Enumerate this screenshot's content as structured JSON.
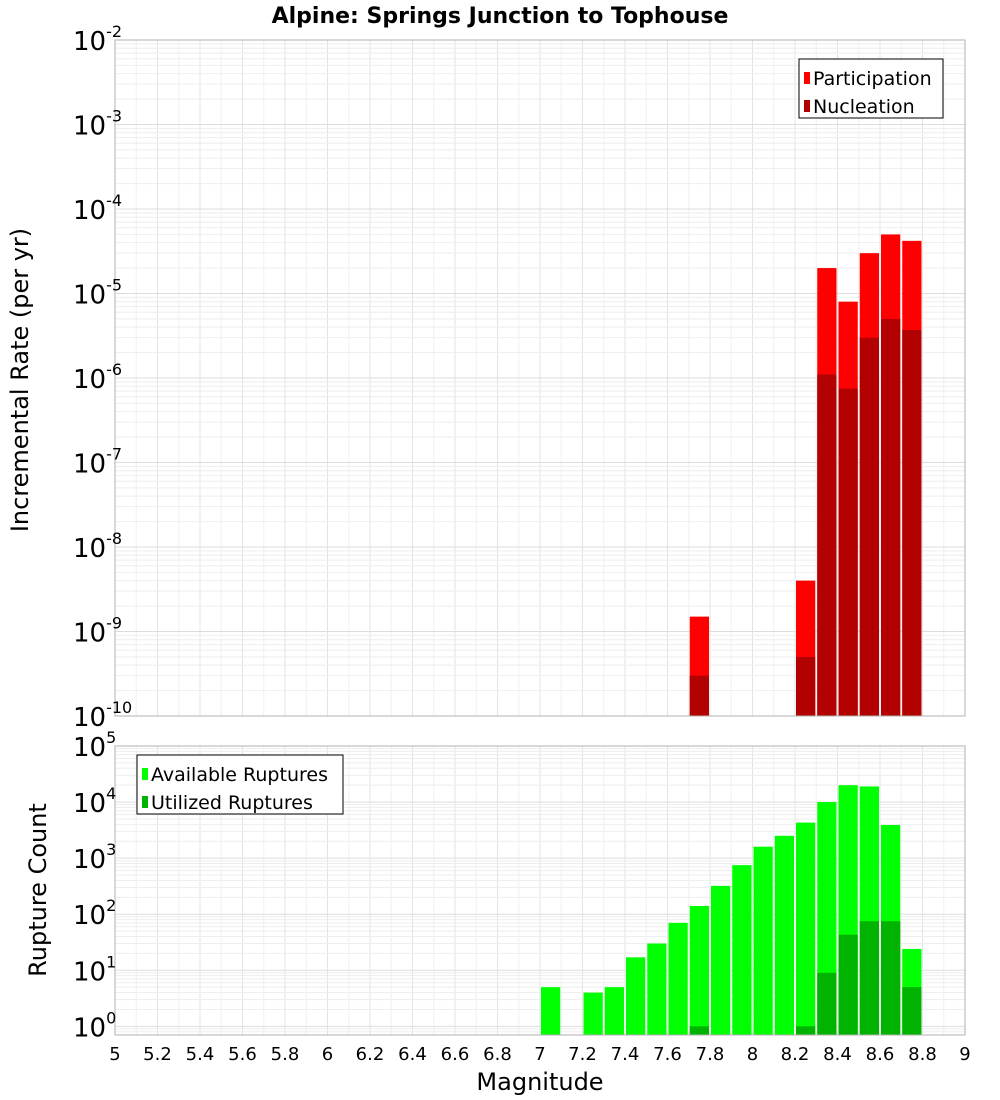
{
  "chart_data": [
    {
      "type": "bar",
      "title": "Alpine: Springs Junction to Tophouse",
      "ylabel": "Incremental Rate (per yr)",
      "yscale": "log",
      "ylim": [
        1e-10,
        0.01
      ],
      "y_ticks": [
        {
          "base": "10",
          "exp": "-10"
        },
        {
          "base": "10",
          "exp": "-9"
        },
        {
          "base": "10",
          "exp": "-8"
        },
        {
          "base": "10",
          "exp": "-7"
        },
        {
          "base": "10",
          "exp": "-6"
        },
        {
          "base": "10",
          "exp": "-5"
        },
        {
          "base": "10",
          "exp": "-4"
        },
        {
          "base": "10",
          "exp": "-3"
        },
        {
          "base": "10",
          "exp": "-2"
        }
      ],
      "grid": true,
      "legend_position": "top-right",
      "legend": [
        {
          "label": "Participation",
          "color": "#ff0000"
        },
        {
          "label": "Nucleation",
          "color": "#b30000"
        }
      ],
      "series": [
        {
          "name": "Participation",
          "color": "#ff0000",
          "x": [
            7.75,
            8.25,
            8.35,
            8.45,
            8.55,
            8.65,
            8.75
          ],
          "values": [
            1.5e-09,
            4e-09,
            2e-05,
            8e-06,
            3e-05,
            5e-05,
            4.2e-05
          ]
        },
        {
          "name": "Nucleation",
          "color": "#b30000",
          "x": [
            7.75,
            8.25,
            8.35,
            8.45,
            8.55,
            8.65,
            8.75
          ],
          "values": [
            3e-10,
            5e-10,
            1.1e-06,
            7.5e-07,
            3e-06,
            5e-06,
            3.7e-06
          ]
        }
      ]
    },
    {
      "type": "bar",
      "xlabel": "Magnitude",
      "ylabel": "Rupture Count",
      "yscale": "log",
      "ylim": [
        0.7,
        100000
      ],
      "xlim": [
        5,
        9
      ],
      "x_ticks": [
        "5",
        "5.2",
        "5.4",
        "5.6",
        "5.8",
        "6",
        "6.2",
        "6.4",
        "6.6",
        "6.8",
        "7",
        "7.2",
        "7.4",
        "7.6",
        "7.8",
        "8",
        "8.2",
        "8.4",
        "8.6",
        "8.8",
        "9"
      ],
      "y_ticks": [
        {
          "base": "10",
          "exp": "0"
        },
        {
          "base": "10",
          "exp": "1"
        },
        {
          "base": "10",
          "exp": "2"
        },
        {
          "base": "10",
          "exp": "3"
        },
        {
          "base": "10",
          "exp": "4"
        },
        {
          "base": "10",
          "exp": "5"
        }
      ],
      "grid": true,
      "legend_position": "top-left",
      "legend": [
        {
          "label": "Available Ruptures",
          "color": "#00ff00"
        },
        {
          "label": "Utilized Ruptures",
          "color": "#00b300"
        }
      ],
      "series": [
        {
          "name": "Available Ruptures",
          "color": "#00ff00",
          "x": [
            7.05,
            7.25,
            7.35,
            7.45,
            7.55,
            7.65,
            7.75,
            7.85,
            7.95,
            8.05,
            8.15,
            8.25,
            8.35,
            8.45,
            8.55,
            8.65,
            8.75
          ],
          "values": [
            5,
            4,
            5,
            17,
            30,
            70,
            140,
            320,
            750,
            1600,
            2500,
            4300,
            10000,
            20000,
            19000,
            3900,
            24
          ]
        },
        {
          "name": "Utilized Ruptures",
          "color": "#00b300",
          "x": [
            7.75,
            8.25,
            8.35,
            8.45,
            8.55,
            8.65,
            8.75
          ],
          "values": [
            1,
            1,
            9,
            43,
            75,
            75,
            5
          ]
        }
      ]
    }
  ]
}
